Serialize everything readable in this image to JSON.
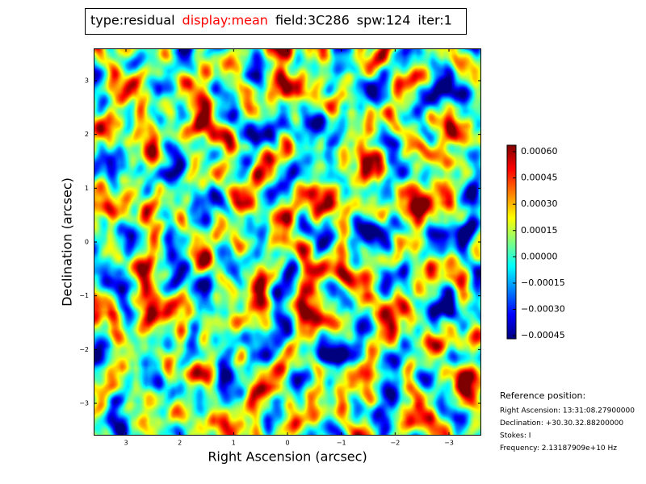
{
  "chart_data": {
    "type": "image",
    "title_parts": [
      {
        "text": "type:residual",
        "color": "#000000"
      },
      {
        "text": "display:mean",
        "color": "#ff0000"
      },
      {
        "text": "field:3C286",
        "color": "#000000"
      },
      {
        "text": "spw:124",
        "color": "#000000"
      },
      {
        "text": "iter:1",
        "color": "#000000"
      }
    ],
    "xlabel": "Right Ascension (arcsec)",
    "ylabel": "Declination (arcsec)",
    "xlim": [
      3.6,
      -3.6
    ],
    "ylim": [
      -3.6,
      3.6
    ],
    "xticks": [
      3,
      2,
      1,
      0,
      {
        "value": -1,
        "label": "−1"
      },
      {
        "value": -2,
        "label": "−2"
      },
      {
        "value": -3,
        "label": "−3"
      }
    ],
    "yticks": [
      {
        "value": -3,
        "label": "−3"
      },
      {
        "value": -2,
        "label": "−2"
      },
      {
        "value": -1,
        "label": "−1"
      },
      0,
      1,
      2,
      3
    ],
    "colorbar": {
      "colormap": "jet",
      "clim": [
        -0.000468,
        0.000637
      ],
      "ticks": [
        {
          "value": -0.00045,
          "label": "−0.00045"
        },
        {
          "value": -0.0003,
          "label": "−0.00030"
        },
        {
          "value": -0.00015,
          "label": "−0.00015"
        },
        {
          "value": 0,
          "label": "0.00000"
        },
        {
          "value": 0.00015,
          "label": "0.00015"
        },
        {
          "value": 0.0003,
          "label": "0.00030"
        },
        {
          "value": 0.00045,
          "label": "0.00045"
        },
        {
          "value": 0.0006,
          "label": "0.00060"
        }
      ]
    },
    "reference": {
      "heading": "Reference position:",
      "lines": [
        "Right Ascension: 13:31:08.27900000",
        "Declination: +30.30.32.88200000",
        "Stokes: I",
        "Frequency: 2.13187909e+10 Hz"
      ]
    }
  }
}
